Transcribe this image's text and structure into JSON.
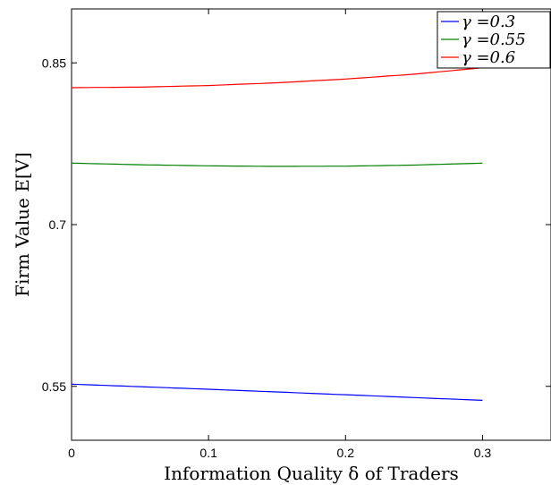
{
  "chart_data": {
    "type": "line",
    "title": "",
    "xlabel": "Information Quality δ of Traders",
    "ylabel": "Firm Value E[V]",
    "xlim": [
      0,
      0.35
    ],
    "ylim": [
      0.5,
      0.9
    ],
    "xticks": [
      0,
      0.1,
      0.2,
      0.3
    ],
    "xtick_labels": [
      "0",
      "0.1",
      "0.2",
      "0.3"
    ],
    "yticks": [
      0.55,
      0.7,
      0.85
    ],
    "ytick_labels": [
      "0.55",
      "0.7",
      "0.85"
    ],
    "grid": false,
    "legend_position": "top-right",
    "x": [
      0,
      0.05,
      0.1,
      0.15,
      0.2,
      0.25,
      0.3
    ],
    "series": [
      {
        "name": "γ =0.3",
        "color": "#0000ff",
        "values": [
          0.552,
          0.5497,
          0.5473,
          0.5448,
          0.5422,
          0.5396,
          0.537
        ]
      },
      {
        "name": "γ =0.55",
        "color": "#008000",
        "values": [
          0.757,
          0.7555,
          0.7545,
          0.754,
          0.7542,
          0.7552,
          0.757
        ]
      },
      {
        "name": "γ =0.6",
        "color": "#ff0000",
        "values": [
          0.827,
          0.8275,
          0.829,
          0.8315,
          0.835,
          0.8395,
          0.8455
        ]
      }
    ]
  }
}
